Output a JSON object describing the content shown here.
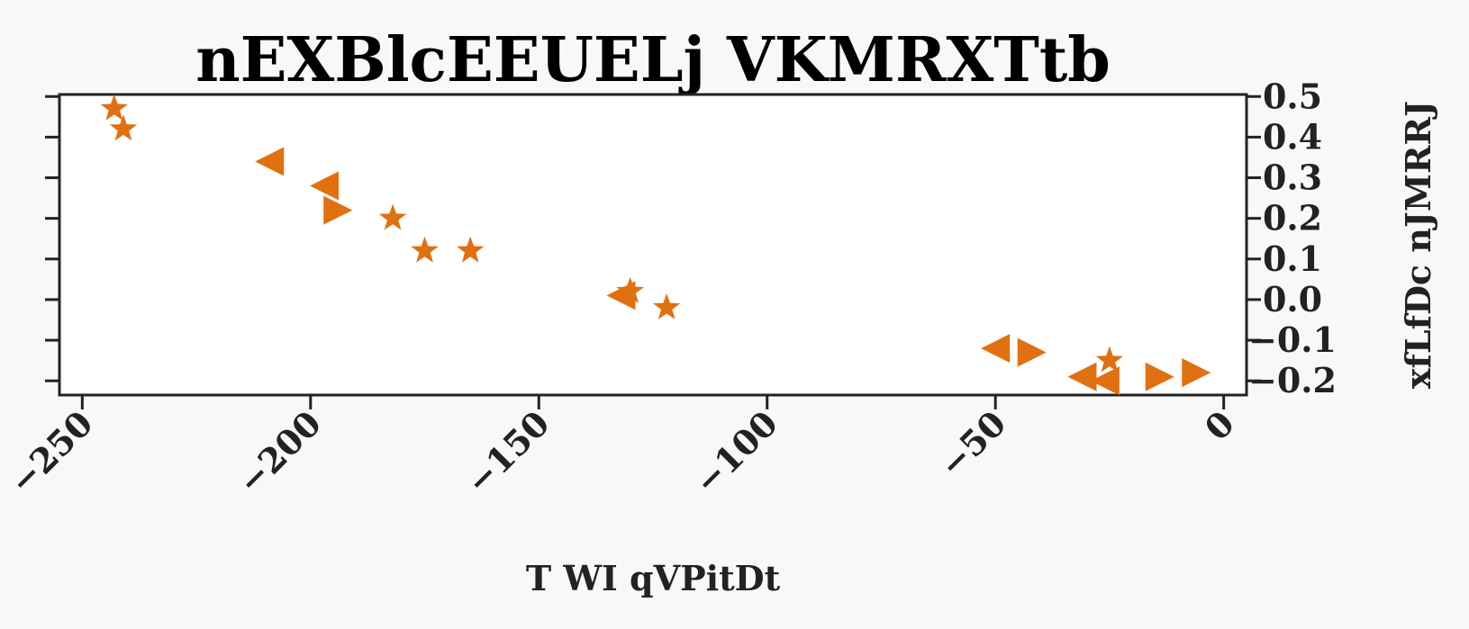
{
  "chart_data": {
    "type": "scatter",
    "title": "nEXBlcEEUELj VKMRXTtb",
    "xlabel": "T WI qVPitDt",
    "ylabel": "xfLfDc nJMRRJ",
    "xlim": [
      -255,
      5
    ],
    "ylim": [
      -0.235,
      0.505
    ],
    "xticks": [
      -250,
      -200,
      -150,
      -100,
      -50,
      0
    ],
    "xtick_labels": [
      "−250",
      "−200",
      "−150",
      "−100",
      "−50",
      "0"
    ],
    "yticks": [
      -0.2,
      -0.1,
      0.0,
      0.1,
      0.2,
      0.3,
      0.4,
      0.5
    ],
    "ytick_labels": [
      "−0.2",
      "−0.1",
      "0.0",
      "0.1",
      "0.2",
      "0.3",
      "0.4",
      "0.5"
    ],
    "y_axis_side": "right",
    "grid": false,
    "legend": "none",
    "color": "#e07010",
    "points": [
      {
        "x": -243,
        "y": 0.47,
        "marker": "star"
      },
      {
        "x": -241,
        "y": 0.42,
        "marker": "star"
      },
      {
        "x": -209,
        "y": 0.34,
        "marker": "triangle-left"
      },
      {
        "x": -197,
        "y": 0.28,
        "marker": "triangle-left"
      },
      {
        "x": -194,
        "y": 0.22,
        "marker": "triangle-right"
      },
      {
        "x": -182,
        "y": 0.2,
        "marker": "star"
      },
      {
        "x": -175,
        "y": 0.12,
        "marker": "star"
      },
      {
        "x": -165,
        "y": 0.12,
        "marker": "star"
      },
      {
        "x": -132,
        "y": 0.01,
        "marker": "triangle-left"
      },
      {
        "x": -130,
        "y": 0.02,
        "marker": "star"
      },
      {
        "x": -122,
        "y": -0.02,
        "marker": "star"
      },
      {
        "x": -50,
        "y": -0.12,
        "marker": "triangle-left"
      },
      {
        "x": -42,
        "y": -0.13,
        "marker": "triangle-right"
      },
      {
        "x": -31,
        "y": -0.19,
        "marker": "triangle-left"
      },
      {
        "x": -25,
        "y": -0.15,
        "marker": "star"
      },
      {
        "x": -26,
        "y": -0.2,
        "marker": "triangle-left"
      },
      {
        "x": -14,
        "y": -0.19,
        "marker": "triangle-right"
      },
      {
        "x": -6,
        "y": -0.18,
        "marker": "triangle-right"
      }
    ]
  }
}
